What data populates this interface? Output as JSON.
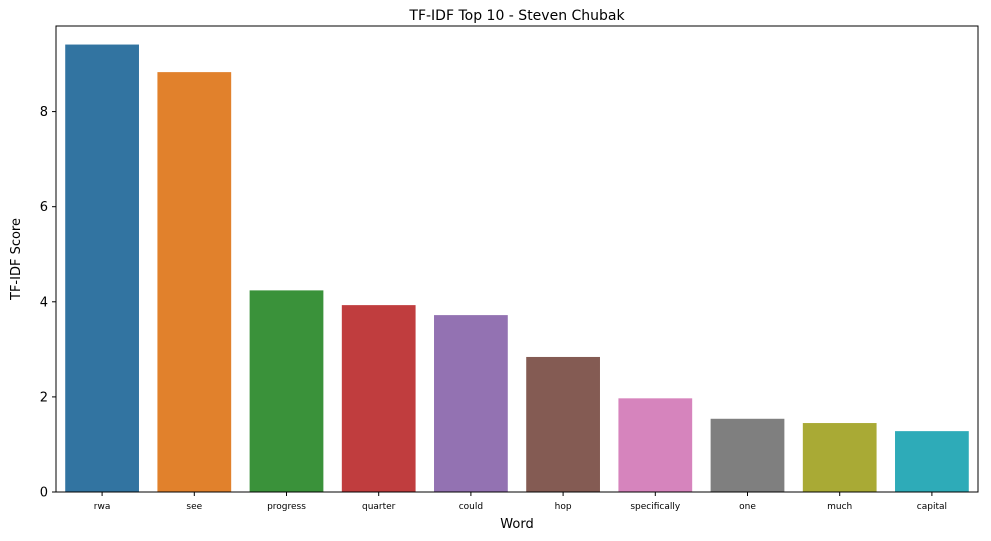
{
  "chart_data": {
    "type": "bar",
    "title": "TF-IDF Top 10 - Steven Chubak",
    "xlabel": "Word",
    "ylabel": "TF-IDF Score",
    "categories": [
      "rwa",
      "see",
      "progress",
      "quarter",
      "could",
      "hop",
      "specifically",
      "one",
      "much",
      "capital"
    ],
    "values": [
      9.41,
      8.83,
      4.24,
      3.93,
      3.72,
      2.84,
      1.97,
      1.54,
      1.45,
      1.28
    ],
    "colors": [
      "#3274a1",
      "#e1812c",
      "#3a923a",
      "#c03d3e",
      "#9372b2",
      "#845b53",
      "#d684bd",
      "#7f7f7f",
      "#a9aa35",
      "#2eabb8"
    ],
    "ylim": [
      0,
      9.8
    ],
    "yticks": [
      0,
      2,
      4,
      6,
      8
    ],
    "grid": false,
    "legend": "none"
  }
}
